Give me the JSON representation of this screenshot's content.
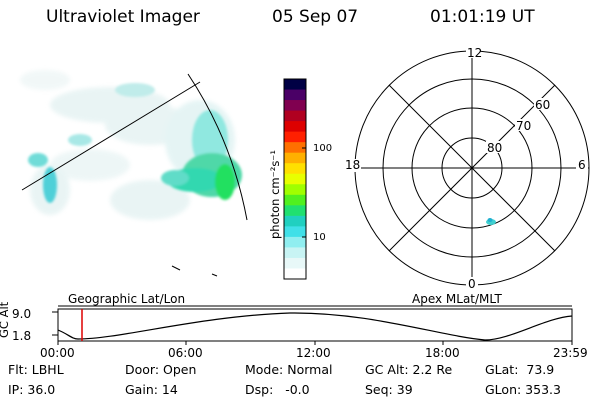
{
  "header": {
    "instrument": "Ultraviolet Imager",
    "date": "05 Sep 07",
    "time": "01:01:19 UT"
  },
  "colorbar": {
    "unit_label": "photon cm⁻²s⁻¹",
    "ticks": [
      "100",
      "10"
    ],
    "colors": [
      "#000044",
      "#4a0066",
      "#800050",
      "#b00020",
      "#dd0000",
      "#ff2000",
      "#ff7000",
      "#ffb000",
      "#ffe000",
      "#e8ff00",
      "#a0ff00",
      "#50f020",
      "#20e070",
      "#20d0c0",
      "#40e0e8",
      "#90eef0",
      "#c8f4f4",
      "#e8f8f8",
      "#ffffff"
    ]
  },
  "polar": {
    "mlt_labels": {
      "top": "12",
      "left": "18",
      "right": "6",
      "bottom": "0"
    },
    "lat_labels": [
      "60",
      "70",
      "80"
    ]
  },
  "timeline": {
    "left_label": "Geographic Lat/Lon",
    "right_label": "Apex MLat/MLT",
    "axis_label": "GC Alt",
    "y_ticks": [
      "9.0",
      "1.8"
    ],
    "x_ticks": [
      "00:00",
      "06:00",
      "12:00",
      "18:00",
      "23:59"
    ]
  },
  "info": {
    "filter": "Flt: LBHL",
    "ip": "IP: 36.0",
    "door": "Door: Open",
    "gain": "Gain: 14",
    "mode": "Mode: Normal",
    "dsp": "Dsp:   -0.0",
    "gc_alt": "GC Alt: 2.2 Re",
    "seq": "Seq: 39",
    "glat": "GLat:  73.9",
    "glon": "GLon: 353.3"
  }
}
